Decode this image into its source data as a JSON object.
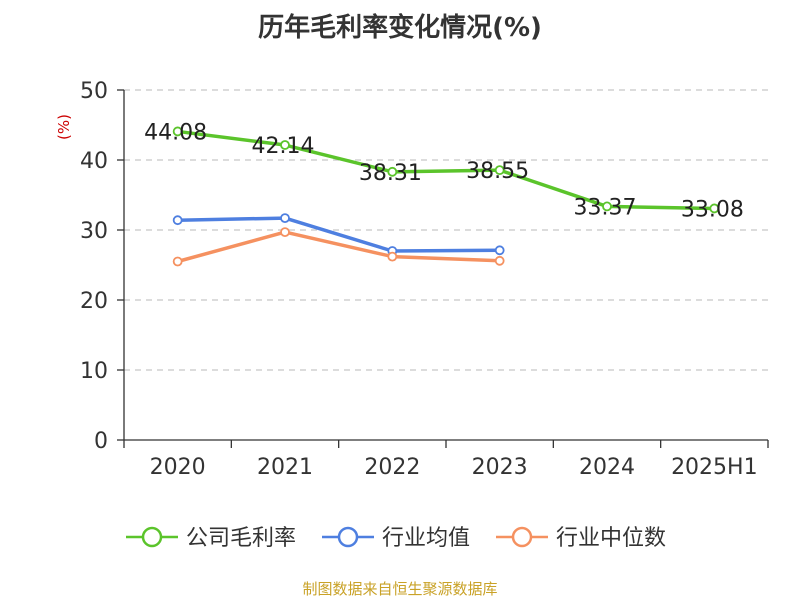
{
  "chart_data": {
    "type": "line",
    "title": "历年毛利率变化情况(%)",
    "y_unit_label": "(%)",
    "categories": [
      "2020",
      "2021",
      "2022",
      "2023",
      "2024",
      "2025H1"
    ],
    "ylim": [
      0,
      50
    ],
    "yticks": [
      0,
      10,
      20,
      30,
      40,
      50
    ],
    "grid": true,
    "legend_position": "bottom",
    "series": [
      {
        "name": "公司毛利率",
        "color": "#5bc42b",
        "values": [
          44.08,
          42.14,
          38.31,
          38.55,
          33.37,
          33.08
        ],
        "labels": [
          "44.08",
          "42.14",
          "38.31",
          "38.55",
          "33.37",
          "33.08"
        ]
      },
      {
        "name": "行业均值",
        "color": "#4e7fe0",
        "values": [
          31.4,
          31.7,
          27.0,
          27.1,
          null,
          null
        ],
        "labels": null
      },
      {
        "name": "行业中位数",
        "color": "#f59160",
        "values": [
          25.5,
          29.7,
          26.2,
          25.6,
          null,
          null
        ],
        "labels": null
      }
    ],
    "colors": {
      "unit_label": "#cc0000",
      "source": "#c9a227",
      "axis": "#333333",
      "grid": "#c8c8c8"
    }
  },
  "footer": {
    "source": "制图数据来自恒生聚源数据库"
  }
}
